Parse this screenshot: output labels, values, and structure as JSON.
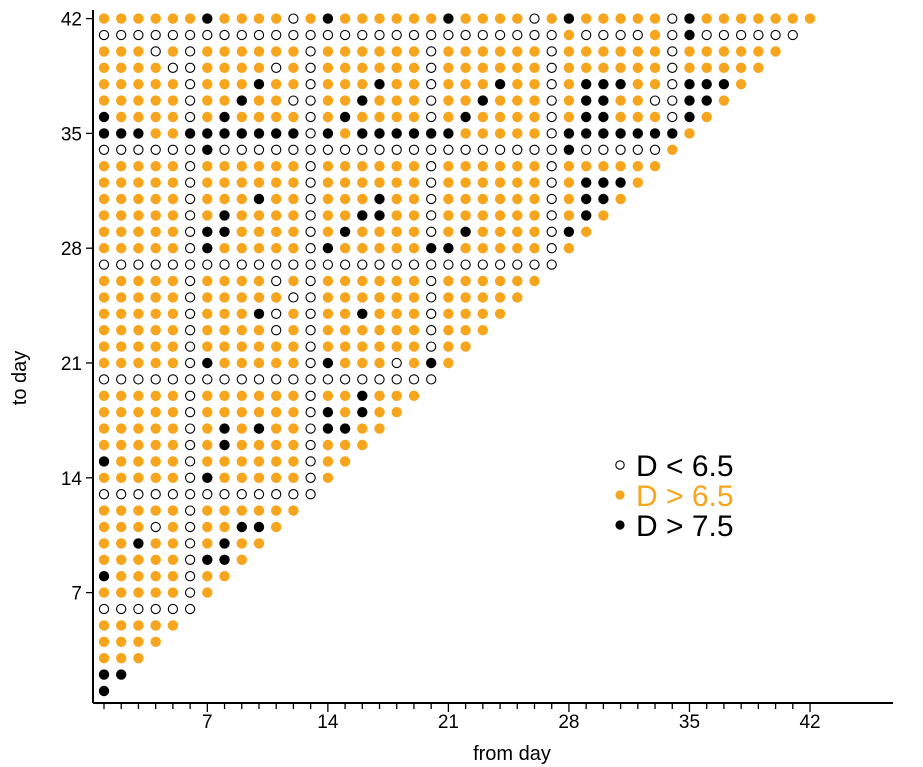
{
  "chart_data": {
    "type": "scatter",
    "title": "",
    "xlabel": "from day",
    "ylabel": "to day",
    "xlim": [
      1,
      42
    ],
    "ylim": [
      1,
      42
    ],
    "xticks": [
      7,
      14,
      21,
      28,
      35,
      42
    ],
    "yticks": [
      7,
      14,
      21,
      28,
      35,
      42
    ],
    "grid": false,
    "colors": {
      "open": "#ffffff",
      "orange": "#f7a51c",
      "black": "#000000",
      "outline": "#000000"
    },
    "legend": {
      "placement": "center-right",
      "entries": [
        {
          "symbol": "open",
          "relation": "<",
          "value": "6.5",
          "label": "D  <  6.5",
          "color": "#000000"
        },
        {
          "symbol": "orange",
          "relation": ">",
          "value": "6.5",
          "label": "D  >  6.5",
          "color": "#f7a51c"
        },
        {
          "symbol": "black",
          "relation": ">",
          "value": "7.5",
          "label": "D  >  7.5",
          "color": "#000000"
        }
      ]
    },
    "description": "Lower-right triangular grid: each point is a (from day, to day) pair with from day <= to day; symbol class encodes statistic D.",
    "default_class": "orange",
    "open_rows": [
      6,
      13,
      20,
      27,
      34,
      41
    ],
    "open_cols": [
      6,
      13,
      20,
      27,
      34
    ],
    "open_extra": [
      [
        12,
        42
      ],
      [
        26,
        42
      ],
      [
        4,
        40
      ],
      [
        5,
        39
      ],
      [
        11,
        39
      ],
      [
        13,
        36
      ],
      [
        12,
        37
      ],
      [
        33,
        37
      ],
      [
        11,
        23
      ],
      [
        11,
        24
      ],
      [
        12,
        25
      ],
      [
        11,
        26
      ],
      [
        13,
        16
      ],
      [
        13,
        17
      ],
      [
        4,
        11
      ],
      [
        18,
        21
      ]
    ],
    "orange_override": [
      [
        28,
        41
      ],
      [
        33,
        41
      ],
      [
        33,
        38
      ],
      [
        33,
        36
      ],
      [
        34,
        34
      ],
      [
        6,
        42
      ],
      [
        13,
        42
      ],
      [
        20,
        42
      ],
      [
        27,
        42
      ]
    ],
    "black_points": [
      [
        1,
        1
      ],
      [
        1,
        2
      ],
      [
        2,
        2
      ],
      [
        1,
        8
      ],
      [
        3,
        10
      ],
      [
        7,
        9
      ],
      [
        8,
        9
      ],
      [
        8,
        10
      ],
      [
        9,
        11
      ],
      [
        10,
        11
      ],
      [
        7,
        14
      ],
      [
        1,
        15
      ],
      [
        8,
        16
      ],
      [
        8,
        17
      ],
      [
        10,
        17
      ],
      [
        7,
        21
      ],
      [
        14,
        21
      ],
      [
        14,
        18
      ],
      [
        14,
        17
      ],
      [
        15,
        17
      ],
      [
        16,
        18
      ],
      [
        16,
        19
      ],
      [
        20,
        21
      ],
      [
        10,
        24
      ],
      [
        16,
        24
      ],
      [
        7,
        28
      ],
      [
        14,
        28
      ],
      [
        20,
        28
      ],
      [
        21,
        28
      ],
      [
        7,
        29
      ],
      [
        8,
        29
      ],
      [
        15,
        29
      ],
      [
        22,
        29
      ],
      [
        28,
        29
      ],
      [
        8,
        30
      ],
      [
        16,
        30
      ],
      [
        17,
        30
      ],
      [
        29,
        30
      ],
      [
        17,
        31
      ],
      [
        29,
        31
      ],
      [
        30,
        31
      ],
      [
        10,
        31
      ],
      [
        29,
        32
      ],
      [
        30,
        32
      ],
      [
        31,
        32
      ],
      [
        7,
        34
      ],
      [
        28,
        34
      ],
      [
        1,
        35
      ],
      [
        2,
        35
      ],
      [
        3,
        35
      ],
      [
        6,
        35
      ],
      [
        7,
        35
      ],
      [
        8,
        35
      ],
      [
        9,
        35
      ],
      [
        10,
        35
      ],
      [
        11,
        35
      ],
      [
        12,
        35
      ],
      [
        14,
        35
      ],
      [
        16,
        35
      ],
      [
        17,
        35
      ],
      [
        18,
        35
      ],
      [
        19,
        35
      ],
      [
        20,
        35
      ],
      [
        21,
        35
      ],
      [
        28,
        35
      ],
      [
        29,
        35
      ],
      [
        30,
        35
      ],
      [
        31,
        35
      ],
      [
        32,
        35
      ],
      [
        33,
        35
      ],
      [
        34,
        35
      ],
      [
        1,
        36
      ],
      [
        8,
        36
      ],
      [
        15,
        36
      ],
      [
        22,
        36
      ],
      [
        29,
        36
      ],
      [
        30,
        36
      ],
      [
        35,
        36
      ],
      [
        9,
        37
      ],
      [
        16,
        37
      ],
      [
        23,
        37
      ],
      [
        29,
        37
      ],
      [
        30,
        37
      ],
      [
        35,
        37
      ],
      [
        36,
        37
      ],
      [
        10,
        38
      ],
      [
        17,
        38
      ],
      [
        24,
        38
      ],
      [
        29,
        38
      ],
      [
        30,
        38
      ],
      [
        31,
        38
      ],
      [
        35,
        38
      ],
      [
        36,
        38
      ],
      [
        37,
        38
      ],
      [
        35,
        41
      ],
      [
        7,
        42
      ],
      [
        14,
        42
      ],
      [
        21,
        42
      ],
      [
        28,
        42
      ],
      [
        35,
        42
      ]
    ]
  }
}
